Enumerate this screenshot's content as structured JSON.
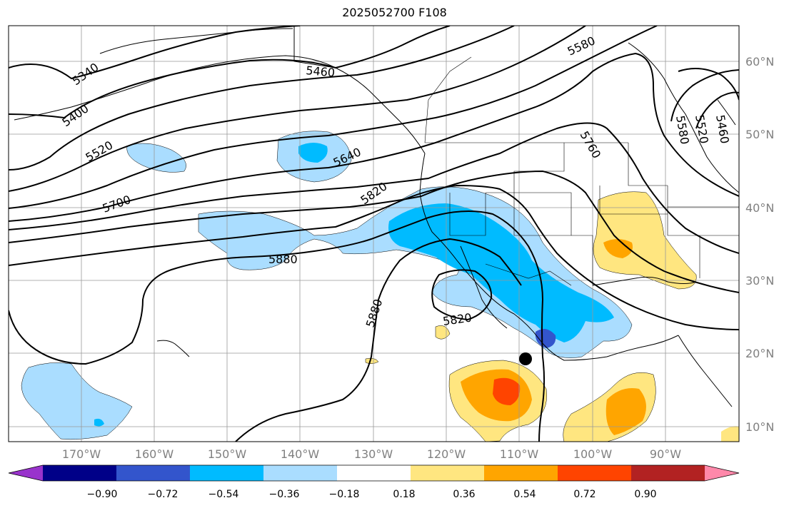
{
  "title": "2025052700 F108",
  "lat_labels": [
    "60°N",
    "50°N",
    "40°N",
    "30°N",
    "20°N",
    "10°N"
  ],
  "lon_labels": [
    "170°W",
    "160°W",
    "150°W",
    "140°W",
    "130°W",
    "120°W",
    "110°W",
    "100°W",
    "90°W"
  ],
  "contour_labels": [
    "5340",
    "5400",
    "5460",
    "5520",
    "5580",
    "5640",
    "5700",
    "5760",
    "5820",
    "5880",
    "5880",
    "5820",
    "5580",
    "5520",
    "5460"
  ],
  "colorbar": {
    "colors": [
      "#9933cc",
      "#000088",
      "#3355cc",
      "#00bbff",
      "#aaddff",
      "#ffffff",
      "#ffe680",
      "#ffa500",
      "#ff4400",
      "#b22222",
      "#ff88aa"
    ],
    "tick_labels": [
      "−0.90",
      "−0.72",
      "−0.54",
      "−0.36",
      "−0.18",
      "0.18",
      "0.36",
      "0.54",
      "0.72",
      "0.90"
    ]
  },
  "colors": {
    "contour": "#000000",
    "coast": "#000000",
    "grid": "#999999",
    "axis_label": "#808080"
  }
}
